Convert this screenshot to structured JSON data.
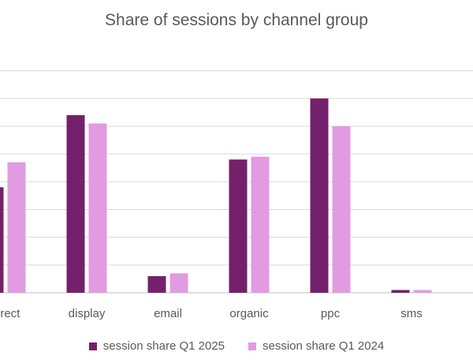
{
  "chart_data": {
    "type": "bar",
    "title": "Share of sessions by channel group",
    "categories": [
      "direct",
      "display",
      "email",
      "organic",
      "ppc",
      "sms"
    ],
    "series": [
      {
        "name": "session share Q1 2025",
        "color": "#75206b",
        "values": [
          0.19,
          0.32,
          0.03,
          0.24,
          0.35,
          0.005
        ]
      },
      {
        "name": "session share Q1 2024",
        "color": "#e19be0",
        "values": [
          0.235,
          0.305,
          0.035,
          0.245,
          0.3,
          0.005
        ]
      }
    ],
    "ylim": [
      0,
      0.425
    ],
    "grid": true,
    "legend_position": "bottom"
  }
}
